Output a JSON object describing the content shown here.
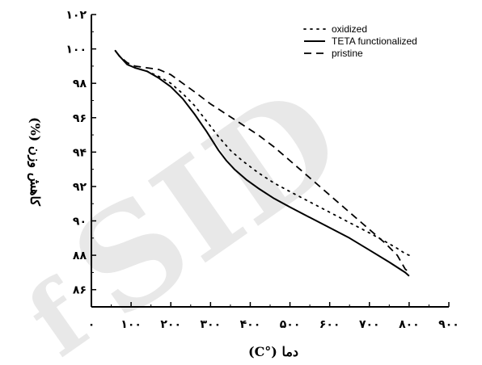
{
  "chart_data": {
    "type": "line",
    "xlabel": "دما (°C)",
    "ylabel": "کاهش وزن (%)",
    "xlim": [
      0,
      900
    ],
    "ylim": [
      85,
      102
    ],
    "x_ticks": [
      0,
      100,
      200,
      300,
      400,
      500,
      600,
      700,
      800,
      900
    ],
    "x_tick_labels": [
      "۰",
      "۱۰۰",
      "۲۰۰",
      "۳۰۰",
      "۴۰۰",
      "۵۰۰",
      "۶۰۰",
      "۷۰۰",
      "۸۰۰",
      "۹۰۰"
    ],
    "y_ticks": [
      86,
      88,
      90,
      92,
      94,
      96,
      98,
      100,
      102
    ],
    "y_tick_labels": [
      "۸۶",
      "۸۸",
      "۹۰",
      "۹۲",
      "۹۴",
      "۹۶",
      "۹۸",
      "۱۰۰",
      "۱۰۲"
    ],
    "legend_position": "top-right",
    "grid": false,
    "series": [
      {
        "name": "oxidized",
        "style": "dotted",
        "color": "#000000",
        "x": [
          60,
          70,
          90,
          110,
          140,
          170,
          200,
          230,
          260,
          290,
          320,
          350,
          380,
          420,
          460,
          500,
          550,
          600,
          650,
          700,
          740,
          770,
          790,
          800
        ],
        "y": [
          99.9,
          99.6,
          99.1,
          98.9,
          98.7,
          98.4,
          98.0,
          97.4,
          96.7,
          95.8,
          94.9,
          94.1,
          93.5,
          92.8,
          92.2,
          91.7,
          91.1,
          90.5,
          89.9,
          89.3,
          88.8,
          88.4,
          88.1,
          88.0
        ]
      },
      {
        "name": "TETA functionalized",
        "style": "solid",
        "color": "#000000",
        "x": [
          60,
          70,
          90,
          110,
          140,
          170,
          200,
          230,
          260,
          290,
          320,
          340,
          360,
          390,
          420,
          460,
          500,
          550,
          600,
          650,
          700,
          750,
          790,
          800
        ],
        "y": [
          99.9,
          99.6,
          99.1,
          98.9,
          98.7,
          98.3,
          97.8,
          97.1,
          96.2,
          95.2,
          94.1,
          93.5,
          93.0,
          92.4,
          91.9,
          91.3,
          90.8,
          90.2,
          89.6,
          89.0,
          88.3,
          87.6,
          87.0,
          86.8
        ]
      },
      {
        "name": "pristine",
        "style": "dashed",
        "color": "#000000",
        "x": [
          60,
          70,
          90,
          110,
          140,
          170,
          200,
          230,
          260,
          300,
          340,
          380,
          420,
          460,
          500,
          550,
          600,
          650,
          700,
          740,
          770,
          780,
          790,
          800
        ],
        "y": [
          99.9,
          99.6,
          99.2,
          99.0,
          98.9,
          98.8,
          98.5,
          98.0,
          97.5,
          96.8,
          96.2,
          95.6,
          95.0,
          94.3,
          93.5,
          92.5,
          91.5,
          90.5,
          89.5,
          88.7,
          88.0,
          87.6,
          87.2,
          87.0
        ]
      }
    ]
  }
}
